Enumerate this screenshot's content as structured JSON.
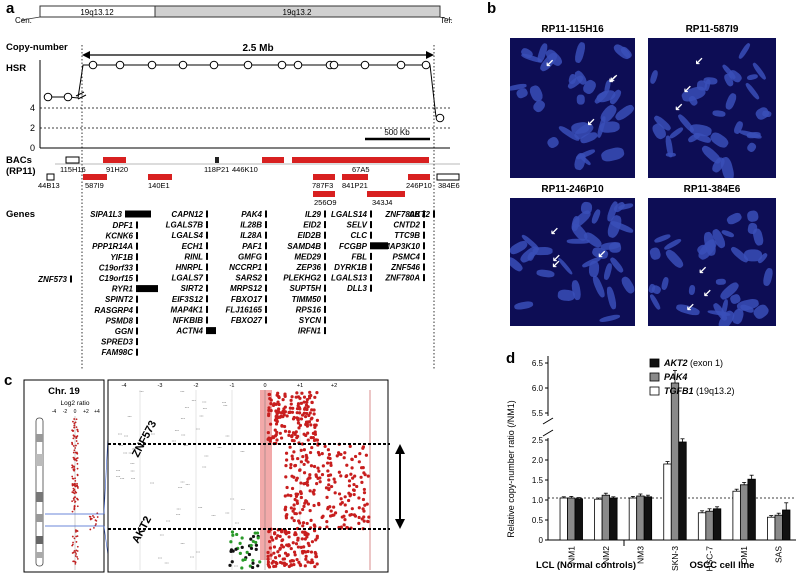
{
  "panels": {
    "a": "a",
    "b": "b",
    "c": "c",
    "d": "d"
  },
  "panel_a": {
    "cen": "Cen.",
    "tel": "Tel.",
    "bands": [
      "19q13.12",
      "19q13.2"
    ],
    "copy_number_label": "Copy-number",
    "span_label": "2.5 Mb",
    "hsr_label": "HSR",
    "y_ticks": [
      "4",
      "2",
      "0"
    ],
    "scale_label": "500 Kb",
    "bacs_label": "BACs",
    "rp11_label": "(RP11)",
    "bacs_row1": [
      "115H16",
      "91H20",
      "118P21",
      "446K10",
      "67A5"
    ],
    "bacs_row2": [
      "44B13",
      "587I9",
      "140E1",
      "787F3",
      "841P21",
      "246P10",
      "384E6"
    ],
    "bacs_row3": [
      "256O9",
      "343J4"
    ],
    "genes_label": "Genes",
    "genes": {
      "c1": [
        "SIPA1L3"
      ],
      "c2": [
        "DPF1",
        "KCNK6",
        "PPP1R14A",
        "YIF1B",
        "C19orf33",
        "C19orf15",
        "RYR1",
        "SPINT2",
        "RASGRP4",
        "PSMD8",
        "GGN",
        "SPRED3",
        "FAM98C"
      ],
      "c3": [
        "CAPN12",
        "LGALS7B",
        "LGALS4",
        "ECH1",
        "RINL",
        "HNRPL",
        "LGALS7",
        "SIRT2",
        "EIF3S12",
        "MAP4K1",
        "NFKBIB",
        "ACTN4"
      ],
      "c4": [
        "PAK4",
        "IL28B",
        "IL28A",
        "PAF1",
        "GMFG",
        "NCCRP1",
        "SARS2",
        "MRPS12",
        "FBXO17",
        "FLJ16165",
        "FBXO27"
      ],
      "c5": [
        "IL29",
        "EID2",
        "EID2B",
        "SAMD4B",
        "MED29",
        "ZEP36",
        "PLEKHG2",
        "SUPT5H",
        "TIMM50",
        "RPS16",
        "SYCN",
        "IRFN1"
      ],
      "c6": [
        "LGALS14",
        "SELV",
        "CLC",
        "FCGBP",
        "FBL",
        "DYRK1B",
        "LGALS13",
        "DLL3"
      ],
      "c7": [
        "ZNF780B",
        "CNTD2",
        "TTC9B",
        "MAP3K10",
        "PSMC4",
        "ZNF546",
        "ZNF780A"
      ],
      "c8": [
        "AKT2"
      ],
      "left": [
        "ZNF573"
      ]
    }
  },
  "panel_b": {
    "titles": [
      "RP11-115H16",
      "RP11-587I9",
      "RP11-246P10",
      "RP11-384E6"
    ]
  },
  "panel_c": {
    "chr_label": "Chr. 19",
    "log2_label": "Log2 ratio",
    "log2_ticks": [
      "-4",
      "-2",
      "0",
      "+2",
      "+4"
    ],
    "top_ticks": [
      "-4",
      "-3",
      "-2",
      "-1",
      "0",
      "+1",
      "+2"
    ],
    "gene_labels": [
      "ZNF573",
      "AKT2"
    ]
  },
  "chart_data": {
    "type": "bar",
    "ylabel": "Relative copy-number ratio (/NM1)",
    "categories": [
      "NM1",
      "NM2",
      "NM3",
      "SKN-3",
      "HSC-7",
      "OM1",
      "SAS"
    ],
    "group_labels": [
      "LCL (Normal controls)",
      "OSCC cell line"
    ],
    "y_ticks": [
      "0",
      "0.5",
      "1.0",
      "1.5",
      "2.0",
      "2.5",
      "5.5",
      "6.0",
      "6.5"
    ],
    "axis_break": [
      2.6,
      5.4
    ],
    "ylim": [
      0,
      6.6
    ],
    "series": [
      {
        "name": "TGFB1",
        "name_suffix": " (19q13.2)",
        "color": "#ffffff",
        "values": [
          1.05,
          1.02,
          1.05,
          1.9,
          0.68,
          1.22,
          0.57
        ],
        "errors": [
          0.03,
          0.03,
          0.04,
          0.06,
          0.05,
          0.05,
          0.04
        ]
      },
      {
        "name": "PAK4",
        "name_suffix": "",
        "color": "#8a8a8a",
        "values": [
          1.05,
          1.12,
          1.1,
          6.1,
          0.72,
          1.38,
          0.62
        ],
        "errors": [
          0.04,
          0.05,
          0.05,
          0.25,
          0.06,
          0.06,
          0.05
        ]
      },
      {
        "name": "AKT2",
        "name_suffix": " (exon 1)",
        "color": "#111111",
        "values": [
          1.03,
          1.05,
          1.08,
          2.45,
          0.78,
          1.52,
          0.75
        ],
        "errors": [
          0.03,
          0.03,
          0.04,
          0.08,
          0.05,
          0.1,
          0.18
        ]
      }
    ],
    "legend_position": "top-right"
  }
}
